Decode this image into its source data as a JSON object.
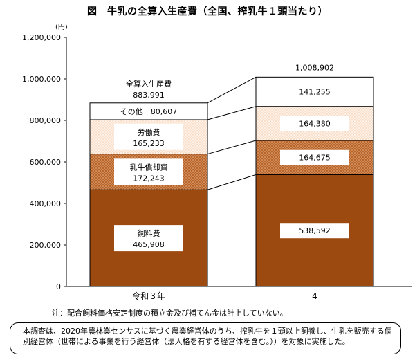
{
  "title": "図　牛乳の全算入生産費（全国、搾乳牛１頭当たり）",
  "note": "注：配合飼料価格安定制度の積立金及び補てん金は計上していない。",
  "footnote": "本調査は、2020年農林業センサスに基づく農業経営体のうち、搾乳牛を１頭以上飼養し、生乳を販売する個別経営体（世帯による事業を行う経営体（法人格を有する経営体を含む。））を対象に実施した。",
  "chart_data": {
    "type": "bar",
    "stacked": true,
    "categories": [
      "令和３年",
      "4"
    ],
    "y_unit": "(円)",
    "ylim": [
      0,
      1200000
    ],
    "yticks": [
      "0",
      "200,000",
      "400,000",
      "600,000",
      "800,000",
      "1,000,000",
      "1,200,000"
    ],
    "series": [
      {
        "name": "飼料費",
        "values": [
          465908,
          538592
        ],
        "labels": [
          "465,908",
          "538,592"
        ],
        "color": "#9c4a10"
      },
      {
        "name": "乳牛償却費",
        "values": [
          172243,
          164675
        ],
        "labels": [
          "172,243",
          "164,675"
        ],
        "color": "#c06d2e",
        "pattern": "dots"
      },
      {
        "name": "労働費",
        "values": [
          165233,
          164380
        ],
        "labels": [
          "165,233",
          "164,380"
        ],
        "color": "#fbe4d2",
        "pattern": "light-dots"
      },
      {
        "name": "その他",
        "values": [
          80607,
          141255
        ],
        "labels": [
          "80,607",
          "141,255"
        ],
        "color": "#ffffff"
      }
    ],
    "totals": {
      "name": "全算入生産費",
      "values": [
        883991,
        1008902
      ],
      "labels": [
        "883,991",
        "1,008,902"
      ]
    },
    "grid": false
  }
}
